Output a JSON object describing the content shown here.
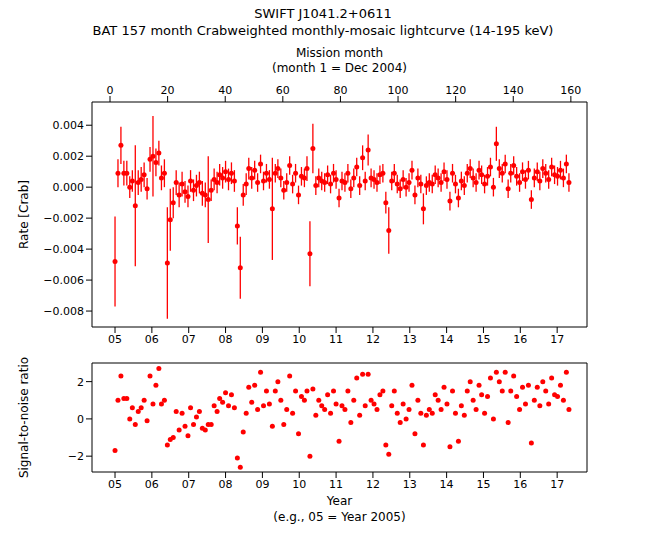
{
  "chart_data": [
    {
      "type": "scatter",
      "title": "SWIFT J1041.2+0611",
      "subtitle": "BAT 157 month Crabweighted monthly-mosaic lightcurve (14-195 keV)",
      "y_label": "Rate [Crab]",
      "x2_label": "Mission month",
      "x2_note": "(month 1 = Dec 2004)",
      "color": "#ff0000",
      "marker": "circle",
      "xlim": [
        2004.375,
        2017.81
      ],
      "xticks": [
        {
          "value": 2005,
          "label": "05"
        },
        {
          "value": 2006,
          "label": "06"
        },
        {
          "value": 2007,
          "label": "07"
        },
        {
          "value": 2008,
          "label": "08"
        },
        {
          "value": 2009,
          "label": "09"
        },
        {
          "value": 2010,
          "label": "10"
        },
        {
          "value": 2011,
          "label": "11"
        },
        {
          "value": 2012,
          "label": "12"
        },
        {
          "value": 2013,
          "label": "13"
        },
        {
          "value": 2014,
          "label": "14"
        },
        {
          "value": 2015,
          "label": "15"
        },
        {
          "value": 2016,
          "label": "16"
        },
        {
          "value": 2017,
          "label": "17"
        }
      ],
      "x2lim": [
        -6.25,
        165.6
      ],
      "x2ticks": [
        0,
        20,
        40,
        60,
        80,
        100,
        120,
        140,
        160
      ],
      "ylim": [
        -0.00903,
        0.0055
      ],
      "yticks": [
        {
          "value": -0.008,
          "label": "−0.008"
        },
        {
          "value": -0.006,
          "label": "−0.006"
        },
        {
          "value": -0.004,
          "label": "−0.004"
        },
        {
          "value": -0.002,
          "label": "−0.002"
        },
        {
          "value": 0,
          "label": "0.000"
        },
        {
          "value": 0.002,
          "label": "0.002"
        },
        {
          "value": 0.004,
          "label": "0.004"
        }
      ],
      "x": [
        2005.0,
        2005.08,
        2005.16,
        2005.24,
        2005.32,
        2005.4,
        2005.47,
        2005.55,
        2005.63,
        2005.71,
        2005.79,
        2005.87,
        2005.95,
        2006.03,
        2006.11,
        2006.19,
        2006.26,
        2006.34,
        2006.42,
        2006.5,
        2006.58,
        2006.66,
        2006.74,
        2006.82,
        2006.9,
        2006.98,
        2007.05,
        2007.13,
        2007.21,
        2007.29,
        2007.37,
        2007.45,
        2007.53,
        2007.61,
        2007.69,
        2007.77,
        2007.84,
        2007.92,
        2008.0,
        2008.08,
        2008.16,
        2008.24,
        2008.32,
        2008.4,
        2008.48,
        2008.56,
        2008.63,
        2008.71,
        2008.79,
        2008.87,
        2008.95,
        2009.03,
        2009.11,
        2009.19,
        2009.27,
        2009.35,
        2009.42,
        2009.5,
        2009.58,
        2009.66,
        2009.74,
        2009.82,
        2009.9,
        2009.98,
        2010.06,
        2010.14,
        2010.21,
        2010.29,
        2010.37,
        2010.45,
        2010.53,
        2010.61,
        2010.69,
        2010.77,
        2010.85,
        2010.93,
        2011.0,
        2011.08,
        2011.16,
        2011.24,
        2011.32,
        2011.4,
        2011.48,
        2011.56,
        2011.64,
        2011.72,
        2011.79,
        2011.87,
        2011.95,
        2012.03,
        2012.11,
        2012.19,
        2012.27,
        2012.35,
        2012.43,
        2012.51,
        2012.58,
        2012.66,
        2012.74,
        2012.82,
        2012.9,
        2012.98,
        2013.06,
        2013.14,
        2013.22,
        2013.3,
        2013.37,
        2013.45,
        2013.53,
        2013.61,
        2013.69,
        2013.77,
        2013.85,
        2013.93,
        2014.01,
        2014.09,
        2014.16,
        2014.24,
        2014.32,
        2014.4,
        2014.48,
        2014.56,
        2014.64,
        2014.72,
        2014.8,
        2014.88,
        2014.95,
        2015.03,
        2015.11,
        2015.19,
        2015.27,
        2015.35,
        2015.43,
        2015.51,
        2015.59,
        2015.67,
        2015.74,
        2015.82,
        2015.9,
        2015.98,
        2016.06,
        2016.14,
        2016.22,
        2016.3,
        2016.38,
        2016.46,
        2016.53,
        2016.61,
        2016.69,
        2016.77,
        2016.85,
        2016.93,
        2017.01,
        2017.09,
        2017.17,
        2017.25,
        2017.32
      ],
      "values": [
        -0.0048,
        0.0009,
        0.0027,
        0.0009,
        0.0009,
        0.0,
        0.0004,
        -0.0012,
        0.0003,
        0.0005,
        0.0008,
        -0.0001,
        0.0018,
        0.002,
        0.0016,
        0.0022,
        0.0006,
        0.0009,
        -0.0049,
        -0.0021,
        -0.001,
        0.0003,
        -0.0005,
        0.0002,
        -0.0003,
        -0.0006,
        0.0004,
        -0.0002,
        0.0001,
        0.0003,
        -0.0004,
        -0.0005,
        -0.0008,
        -0.0002,
        0.0005,
        0.0003,
        0.0008,
        0.0006,
        0.001,
        0.0005,
        0.0009,
        0.0004,
        -0.0025,
        -0.0052,
        -0.0005,
        0.0002,
        0.0012,
        0.0006,
        0.0011,
        0.0003,
        0.0015,
        0.0004,
        0.0009,
        0.0005,
        -0.0014,
        0.0009,
        0.0012,
        0.0006,
        -0.0002,
        0.0003,
        0.0014,
        0.0002,
        0.0009,
        -0.0005,
        0.0007,
        0.0006,
        0.0012,
        -0.0043,
        0.0025,
        0.0001,
        0.0006,
        0.0004,
        0.0003,
        0.0008,
        0.0002,
        0.0009,
        0.0005,
        -0.0007,
        0.0004,
        0.0003,
        0.0009,
        -0.0001,
        0.0006,
        0.0013,
        0.0001,
        0.0019,
        0.0004,
        0.0024,
        0.0006,
        0.0005,
        0.0003,
        0.0008,
        0.0009,
        -0.001,
        -0.0028,
        0.0004,
        0.0009,
        0.0002,
        -0.0001,
        0.0005,
        0.0,
        0.0003,
        0.0011,
        -0.0005,
        0.0006,
        0.0002,
        -0.0014,
        0.0001,
        0.0003,
        0.0002,
        0.0008,
        0.0006,
        0.0003,
        0.001,
        0.0005,
        -0.0009,
        0.0009,
        0.0002,
        -0.0007,
        0.0004,
        0.0001,
        0.0009,
        0.0012,
        0.0006,
        0.0003,
        0.0011,
        0.0008,
        0.0002,
        0.0007,
        0.0013,
        0.0,
        0.0028,
        0.0012,
        0.0009,
        0.0015,
        -0.0001,
        0.0009,
        0.0014,
        0.0007,
        0.0003,
        0.001,
        0.0005,
        0.0011,
        -0.0008,
        0.0006,
        0.001,
        0.0004,
        0.0012,
        0.0009,
        0.0005,
        0.0013,
        0.0008,
        0.0007,
        0.0011,
        0.0006,
        0.0015,
        0.0003
      ],
      "errors": [
        0.0029,
        0.0009,
        0.0012,
        0.0008,
        0.0008,
        0.0007,
        0.0007,
        0.0039,
        0.0008,
        0.0008,
        0.0008,
        0.0007,
        0.0008,
        0.0026,
        0.0009,
        0.0008,
        0.0008,
        0.0009,
        0.0036,
        0.002,
        0.001,
        0.0008,
        0.0008,
        0.0008,
        0.0007,
        0.0007,
        0.0007,
        0.0007,
        0.0007,
        0.0007,
        0.0008,
        0.0008,
        0.0028,
        0.0007,
        0.0007,
        0.0007,
        0.0007,
        0.0007,
        0.0007,
        0.0007,
        0.0007,
        0.0007,
        0.0012,
        0.002,
        0.0007,
        0.0007,
        0.0007,
        0.0007,
        0.0006,
        0.0006,
        0.0006,
        0.0006,
        0.0006,
        0.0006,
        0.0033,
        0.0006,
        0.0006,
        0.0006,
        0.0006,
        0.0006,
        0.0006,
        0.0006,
        0.0006,
        0.0006,
        0.0006,
        0.0006,
        0.0008,
        0.0021,
        0.0016,
        0.0006,
        0.0006,
        0.0006,
        0.0006,
        0.0006,
        0.0006,
        0.0006,
        0.0006,
        0.0006,
        0.0006,
        0.0006,
        0.0006,
        0.0006,
        0.0006,
        0.0006,
        0.0006,
        0.0008,
        0.0006,
        0.001,
        0.0006,
        0.0006,
        0.0006,
        0.0006,
        0.0006,
        0.0007,
        0.0015,
        0.0006,
        0.0006,
        0.0006,
        0.0006,
        0.0006,
        0.0006,
        0.0006,
        0.0006,
        0.0006,
        0.0006,
        0.0006,
        0.001,
        0.0006,
        0.0006,
        0.0006,
        0.0006,
        0.0006,
        0.0006,
        0.0006,
        0.0006,
        0.0006,
        0.0006,
        0.0006,
        0.0006,
        0.0006,
        0.0006,
        0.0006,
        0.0006,
        0.0006,
        0.0006,
        0.0006,
        0.0006,
        0.0006,
        0.0006,
        0.0006,
        0.0006,
        0.0011,
        0.0006,
        0.0006,
        0.0006,
        0.0006,
        0.0006,
        0.0006,
        0.0006,
        0.0006,
        0.0006,
        0.0006,
        0.0006,
        0.0006,
        0.0006,
        0.0006,
        0.0006,
        0.0006,
        0.0006,
        0.0006,
        0.0006,
        0.0006,
        0.0006,
        0.0006,
        0.0006,
        0.0006,
        0.0006
      ]
    },
    {
      "type": "scatter",
      "y_label": "Signal-to-noise ratio",
      "x_label": "Year",
      "x_note": "(e.g., 05 = Year 2005)",
      "color": "#ff0000",
      "marker": "circle",
      "xlim": [
        2004.375,
        2017.81
      ],
      "xticks": [
        {
          "value": 2005,
          "label": "05"
        },
        {
          "value": 2006,
          "label": "06"
        },
        {
          "value": 2007,
          "label": "07"
        },
        {
          "value": 2008,
          "label": "08"
        },
        {
          "value": 2009,
          "label": "09"
        },
        {
          "value": 2010,
          "label": "10"
        },
        {
          "value": 2011,
          "label": "11"
        },
        {
          "value": 2012,
          "label": "12"
        },
        {
          "value": 2013,
          "label": "13"
        },
        {
          "value": 2014,
          "label": "14"
        },
        {
          "value": 2015,
          "label": "15"
        },
        {
          "value": 2016,
          "label": "16"
        },
        {
          "value": 2017,
          "label": "17"
        }
      ],
      "ylim": [
        -2.85,
        3.0
      ],
      "yticks": [
        {
          "value": -2,
          "label": "−2"
        },
        0,
        2
      ],
      "x": [
        2005.0,
        2005.08,
        2005.16,
        2005.24,
        2005.32,
        2005.4,
        2005.47,
        2005.55,
        2005.63,
        2005.71,
        2005.79,
        2005.87,
        2005.95,
        2006.03,
        2006.11,
        2006.19,
        2006.26,
        2006.34,
        2006.42,
        2006.5,
        2006.58,
        2006.66,
        2006.74,
        2006.82,
        2006.9,
        2006.98,
        2007.05,
        2007.13,
        2007.21,
        2007.29,
        2007.37,
        2007.45,
        2007.53,
        2007.61,
        2007.69,
        2007.77,
        2007.84,
        2007.92,
        2008.0,
        2008.08,
        2008.16,
        2008.24,
        2008.32,
        2008.4,
        2008.48,
        2008.56,
        2008.63,
        2008.71,
        2008.79,
        2008.87,
        2008.95,
        2009.03,
        2009.11,
        2009.19,
        2009.27,
        2009.35,
        2009.42,
        2009.5,
        2009.58,
        2009.66,
        2009.74,
        2009.82,
        2009.9,
        2009.98,
        2010.06,
        2010.14,
        2010.21,
        2010.29,
        2010.37,
        2010.45,
        2010.53,
        2010.61,
        2010.69,
        2010.77,
        2010.85,
        2010.93,
        2011.0,
        2011.08,
        2011.16,
        2011.24,
        2011.32,
        2011.4,
        2011.48,
        2011.56,
        2011.64,
        2011.72,
        2011.79,
        2011.87,
        2011.95,
        2012.03,
        2012.11,
        2012.19,
        2012.27,
        2012.35,
        2012.43,
        2012.51,
        2012.58,
        2012.66,
        2012.74,
        2012.82,
        2012.9,
        2012.98,
        2013.06,
        2013.14,
        2013.22,
        2013.3,
        2013.37,
        2013.45,
        2013.53,
        2013.61,
        2013.69,
        2013.77,
        2013.85,
        2013.93,
        2014.01,
        2014.09,
        2014.16,
        2014.24,
        2014.32,
        2014.4,
        2014.48,
        2014.56,
        2014.64,
        2014.72,
        2014.8,
        2014.88,
        2014.95,
        2015.03,
        2015.11,
        2015.19,
        2015.27,
        2015.35,
        2015.43,
        2015.51,
        2015.59,
        2015.67,
        2015.74,
        2015.82,
        2015.9,
        2015.98,
        2016.06,
        2016.14,
        2016.22,
        2016.3,
        2016.38,
        2016.46,
        2016.53,
        2016.61,
        2016.69,
        2016.77,
        2016.85,
        2016.93,
        2017.01,
        2017.09,
        2017.17,
        2017.25,
        2017.32
      ],
      "values": [
        -1.7,
        1.0,
        2.3,
        1.1,
        1.1,
        0.0,
        0.6,
        -0.3,
        0.4,
        0.6,
        1.0,
        -0.1,
        2.3,
        0.8,
        1.8,
        2.7,
        0.8,
        1.0,
        -1.4,
        -1.1,
        -1.0,
        0.4,
        -0.6,
        0.3,
        -0.4,
        -0.9,
        0.6,
        -0.3,
        0.1,
        0.4,
        -0.5,
        -0.6,
        -0.3,
        -0.3,
        0.7,
        0.4,
        1.1,
        0.9,
        1.4,
        0.7,
        1.3,
        0.6,
        -2.1,
        -2.6,
        -0.7,
        0.3,
        1.7,
        0.9,
        1.8,
        0.5,
        2.5,
        0.7,
        1.5,
        0.8,
        -0.4,
        1.5,
        2.0,
        1.0,
        -0.3,
        0.5,
        2.3,
        0.3,
        1.5,
        -0.8,
        1.2,
        1.0,
        1.5,
        -2.0,
        1.6,
        0.2,
        1.0,
        0.7,
        0.5,
        1.3,
        0.3,
        1.5,
        0.8,
        -1.2,
        0.7,
        0.5,
        1.5,
        -0.2,
        1.0,
        2.2,
        0.2,
        2.4,
        0.7,
        2.4,
        1.0,
        0.8,
        0.5,
        1.3,
        1.5,
        -1.4,
        -1.9,
        0.7,
        1.5,
        0.3,
        -0.2,
        0.8,
        0.0,
        0.5,
        1.8,
        -0.8,
        1.0,
        0.3,
        -1.4,
        0.2,
        0.5,
        0.3,
        1.3,
        1.0,
        0.5,
        1.7,
        0.8,
        -1.5,
        1.5,
        0.3,
        -1.2,
        0.7,
        0.2,
        1.5,
        2.0,
        1.0,
        0.5,
        1.8,
        1.3,
        0.3,
        1.2,
        2.2,
        0.0,
        2.5,
        2.0,
        1.5,
        2.5,
        -0.2,
        1.5,
        2.3,
        1.2,
        0.5,
        1.7,
        0.8,
        1.8,
        -1.3,
        1.0,
        1.7,
        0.7,
        2.0,
        1.5,
        0.8,
        2.2,
        1.3,
        1.2,
        1.8,
        1.0,
        2.5,
        0.5
      ]
    }
  ]
}
